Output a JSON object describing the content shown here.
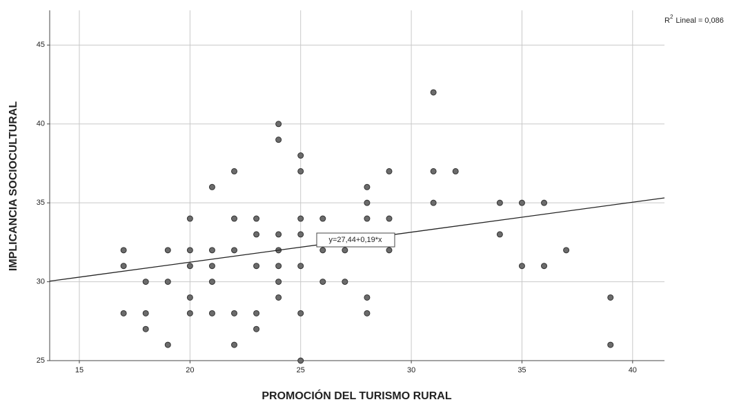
{
  "chart_data": {
    "type": "scatter",
    "x_label": "PROMOCIÓN DEL TURISMO RURAL",
    "y_label": "IMPLICANCIA SOCIOCULTURAL",
    "r2_label": {
      "prefix": "R",
      "sup": "2",
      "text": "Lineal = 0,086"
    },
    "fit": {
      "label": "y=27,44+0,19*x",
      "intercept": 27.44,
      "slope": 0.19
    },
    "xlim": [
      13.66,
      41.44
    ],
    "ylim": [
      25,
      47.2
    ],
    "xticks": [
      15,
      20,
      25,
      30,
      35,
      40
    ],
    "yticks": [
      25,
      30,
      35,
      40,
      45
    ],
    "grid": true,
    "series": [
      {
        "color": "#6b6b6b",
        "x": [
          17,
          17,
          17,
          18,
          18,
          18,
          19,
          19,
          19,
          20,
          20,
          20,
          20,
          20,
          21,
          21,
          21,
          21,
          21,
          22,
          22,
          22,
          22,
          22,
          23,
          23,
          23,
          23,
          23,
          24,
          24,
          24,
          24,
          24,
          24,
          24,
          25,
          25,
          25,
          25,
          25,
          25,
          25,
          26,
          26,
          26,
          27,
          27,
          28,
          28,
          28,
          28,
          28,
          29,
          29,
          29,
          31,
          31,
          31,
          32,
          34,
          34,
          35,
          35,
          36,
          36,
          37,
          39,
          39
        ],
        "values": [
          32,
          31,
          28,
          30,
          28,
          27,
          32,
          30,
          26,
          34,
          32,
          31,
          29,
          28,
          36,
          32,
          31,
          30,
          28,
          37,
          34,
          32,
          28,
          26,
          34,
          33,
          31,
          28,
          27,
          40,
          39,
          33,
          32,
          31,
          30,
          29,
          38,
          37,
          34,
          33,
          31,
          28,
          25,
          34,
          32,
          30,
          32,
          30,
          36,
          35,
          34,
          29,
          28,
          37,
          34,
          32,
          42,
          37,
          35,
          37,
          35,
          33,
          35,
          31,
          35,
          31,
          32,
          29,
          26
        ]
      }
    ]
  }
}
